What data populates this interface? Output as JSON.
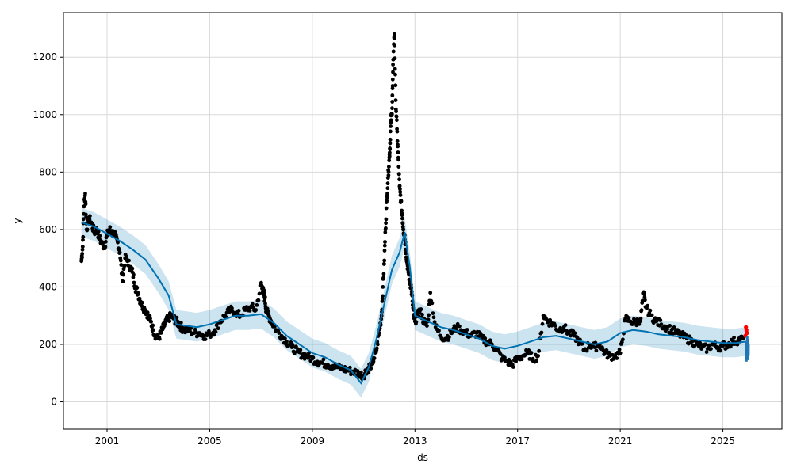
{
  "chart_data": {
    "type": "line",
    "title": "",
    "xlabel": "ds",
    "ylabel": "y",
    "xlim": [
      1999.3,
      2027.3
    ],
    "ylim": [
      -95,
      1355
    ],
    "grid": true,
    "x_ticks": [
      {
        "value": 2001,
        "label": "2001"
      },
      {
        "value": 2005,
        "label": "2005"
      },
      {
        "value": 2009,
        "label": "2009"
      },
      {
        "value": 2013,
        "label": "2013"
      },
      {
        "value": 2017,
        "label": "2017"
      },
      {
        "value": 2021,
        "label": "2021"
      },
      {
        "value": 2025,
        "label": "2025"
      }
    ],
    "y_ticks": [
      {
        "value": 0,
        "label": "0"
      },
      {
        "value": 200,
        "label": "200"
      },
      {
        "value": 400,
        "label": "400"
      },
      {
        "value": 600,
        "label": "600"
      },
      {
        "value": 800,
        "label": "800"
      },
      {
        "value": 1000,
        "label": "1000"
      },
      {
        "value": 1200,
        "label": "1200"
      }
    ],
    "colors": {
      "forecast_line": "#0072B2",
      "interval_band": "#0072B2",
      "observed_points": "#000000",
      "recent_points": "#ff0000",
      "future_forecast": "#1f77b4",
      "grid": "#d9d9d9"
    },
    "forecast_x": [
      2000.0,
      2000.5,
      2001.0,
      2001.5,
      2002.0,
      2002.5,
      2003.0,
      2003.4,
      2003.7,
      2004.5,
      2005.0,
      2005.5,
      2006.0,
      2006.5,
      2007.0,
      2007.5,
      2008.0,
      2008.5,
      2009.0,
      2009.5,
      2010.0,
      2010.5,
      2010.9,
      2011.2,
      2011.5,
      2011.8,
      2012.1,
      2012.4,
      2012.6,
      2012.8,
      2013.0,
      2013.5,
      2014.0,
      2014.5,
      2015.0,
      2015.5,
      2016.0,
      2016.5,
      2017.0,
      2017.5,
      2018.0,
      2018.5,
      2019.0,
      2019.5,
      2020.0,
      2020.5,
      2021.0,
      2021.5,
      2022.0,
      2022.5,
      2023.0,
      2023.5,
      2024.0,
      2024.5,
      2025.0,
      2025.5,
      2025.9
    ],
    "forecast_yhat": [
      625,
      610,
      585,
      560,
      530,
      495,
      430,
      370,
      270,
      260,
      270,
      285,
      300,
      300,
      305,
      275,
      230,
      200,
      170,
      155,
      130,
      110,
      65,
      120,
      220,
      340,
      460,
      520,
      590,
      470,
      300,
      280,
      260,
      250,
      235,
      220,
      195,
      185,
      195,
      210,
      225,
      230,
      220,
      210,
      200,
      210,
      240,
      250,
      245,
      235,
      230,
      225,
      215,
      210,
      205,
      205,
      210
    ],
    "interval_band": {
      "x_half_width": 42,
      "y_half_width": 50
    },
    "observed_x": [
      2000.0,
      2000.05,
      2000.1,
      2000.15,
      2000.2,
      2000.3,
      2000.4,
      2000.5,
      2000.6,
      2000.7,
      2000.8,
      2000.9,
      2001.0,
      2001.1,
      2001.2,
      2001.3,
      2001.4,
      2001.5,
      2001.6,
      2001.7,
      2001.8,
      2001.9,
      2002.0,
      2002.1,
      2002.2,
      2002.3,
      2002.4,
      2002.5,
      2002.6,
      2002.7,
      2002.8,
      2002.9,
      2003.0,
      2003.1,
      2003.2,
      2003.3,
      2003.4,
      2003.5,
      2003.6,
      2003.7,
      2003.8,
      2003.9,
      2004.0,
      2004.2,
      2004.4,
      2004.6,
      2004.8,
      2005.0,
      2005.2,
      2005.4,
      2005.6,
      2005.8,
      2006.0,
      2006.2,
      2006.4,
      2006.6,
      2006.8,
      2007.0,
      2007.05,
      2007.1,
      2007.15,
      2007.2,
      2007.3,
      2007.4,
      2007.6,
      2007.8,
      2008.0,
      2008.2,
      2008.4,
      2008.6,
      2008.8,
      2009.0,
      2009.2,
      2009.4,
      2009.6,
      2009.8,
      2010.0,
      2010.2,
      2010.4,
      2010.6,
      2010.8,
      2011.0,
      2011.1,
      2011.2,
      2011.3,
      2011.4,
      2011.5,
      2011.6,
      2011.7,
      2011.75,
      2011.8,
      2011.85,
      2011.9,
      2011.95,
      2012.0,
      2012.03,
      2012.06,
      2012.1,
      2012.13,
      2012.16,
      2012.2,
      2012.25,
      2012.3,
      2012.35,
      2012.4,
      2012.45,
      2012.5,
      2012.55,
      2012.6,
      2012.65,
      2012.7,
      2012.75,
      2012.8,
      2012.85,
      2012.9,
      2012.95,
      2013.0,
      2013.1,
      2013.2,
      2013.3,
      2013.4,
      2013.5,
      2013.6,
      2013.8,
      2014.0,
      2014.2,
      2014.4,
      2014.6,
      2014.8,
      2015.0,
      2015.2,
      2015.4,
      2015.6,
      2015.8,
      2016.0,
      2016.2,
      2016.4,
      2016.6,
      2016.8,
      2017.0,
      2017.2,
      2017.4,
      2017.6,
      2017.8,
      2018.0,
      2018.2,
      2018.4,
      2018.6,
      2018.8,
      2019.0,
      2019.2,
      2019.4,
      2019.6,
      2019.8,
      2020.0,
      2020.2,
      2020.4,
      2020.6,
      2020.8,
      2021.0,
      2021.2,
      2021.4,
      2021.6,
      2021.8,
      2021.9,
      2022.0,
      2022.2,
      2022.4,
      2022.6,
      2022.8,
      2023.0,
      2023.2,
      2023.4,
      2023.6,
      2023.8,
      2024.0,
      2024.2,
      2024.4,
      2024.6,
      2024.8,
      2025.0,
      2025.2,
      2025.4,
      2025.6,
      2025.8
    ],
    "observed_y": [
      490,
      540,
      680,
      725,
      600,
      640,
      620,
      590,
      600,
      570,
      550,
      540,
      580,
      600,
      590,
      580,
      560,
      520,
      420,
      500,
      490,
      470,
      450,
      400,
      380,
      350,
      330,
      320,
      300,
      280,
      250,
      230,
      220,
      240,
      260,
      280,
      290,
      300,
      290,
      280,
      270,
      260,
      250,
      250,
      240,
      240,
      230,
      235,
      250,
      280,
      300,
      320,
      310,
      300,
      320,
      330,
      320,
      410,
      395,
      380,
      360,
      320,
      300,
      280,
      250,
      230,
      210,
      190,
      175,
      165,
      160,
      150,
      140,
      135,
      130,
      125,
      120,
      115,
      110,
      105,
      100,
      90,
      110,
      120,
      130,
      150,
      180,
      240,
      300,
      400,
      480,
      600,
      700,
      780,
      850,
      900,
      980,
      1000,
      1100,
      1220,
      1280,
      1050,
      950,
      850,
      750,
      700,
      650,
      600,
      580,
      520,
      480,
      450,
      420,
      400,
      350,
      300,
      280,
      300,
      320,
      290,
      270,
      280,
      380,
      260,
      230,
      220,
      240,
      260,
      250,
      240,
      230,
      240,
      220,
      210,
      200,
      180,
      150,
      140,
      130,
      150,
      160,
      170,
      150,
      160,
      300,
      280,
      270,
      250,
      260,
      240,
      230,
      210,
      180,
      200,
      190,
      200,
      170,
      160,
      160,
      170,
      290,
      280,
      275,
      290,
      380,
      330,
      300,
      280,
      270,
      260,
      250,
      240,
      230,
      220,
      210,
      200,
      190,
      185,
      200,
      190,
      195,
      200,
      210,
      215,
      220
    ],
    "recent_x": [
      2025.88,
      2025.9,
      2025.92,
      2025.94
    ],
    "recent_y": [
      230,
      260,
      250,
      240
    ],
    "future_x": [
      2025.92,
      2025.95,
      2025.98,
      2026.0
    ],
    "future_low": [
      140,
      150,
      145,
      160
    ],
    "future_high": [
      210,
      230,
      220,
      200
    ]
  }
}
